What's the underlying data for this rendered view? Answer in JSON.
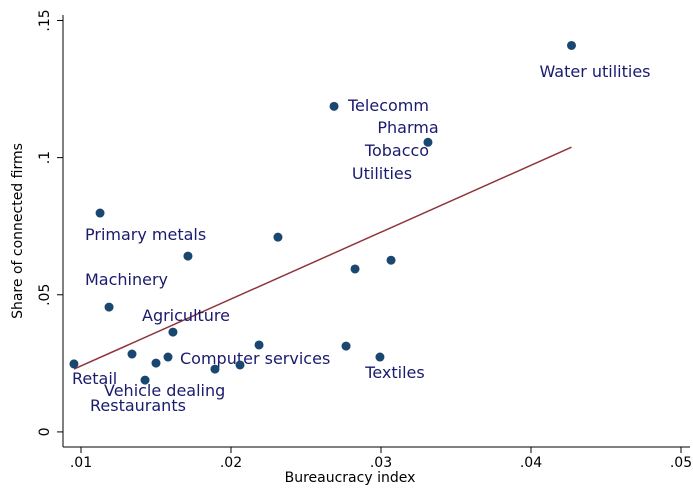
{
  "chart_data": {
    "type": "scatter",
    "xlabel": "Bureaucracy index",
    "ylabel": "Share of connected firms",
    "xlim": [
      0.0088,
      0.0506
    ],
    "ylim": [
      -0.0055,
      0.152
    ],
    "xticks": [
      {
        "value": 0.01,
        "label": ".01"
      },
      {
        "value": 0.02,
        "label": ".02"
      },
      {
        "value": 0.03,
        "label": ".03"
      },
      {
        "value": 0.04,
        "label": ".04"
      },
      {
        "value": 0.05,
        "label": ".05"
      }
    ],
    "yticks": [
      0,
      {
        "value": 0.05,
        "label": ".05"
      },
      {
        "value": 0.1,
        "label": ".1"
      },
      {
        "value": 0.15,
        "label": ".15"
      }
    ],
    "color": "#1a476f",
    "label_color": "#1a1a6e",
    "x": [
      0.0427,
      0.02687,
      0.03313,
      0.01127,
      0.02313,
      0.01713,
      0.02827,
      0.03067,
      0.01187,
      0.01613,
      0.02187,
      0.02767,
      0.02993,
      0.0134,
      0.0158,
      0.015,
      0.00953,
      0.01427,
      0.01893,
      0.0206
    ],
    "values": [
      0.1409,
      0.1187,
      0.1056,
      0.0798,
      0.071,
      0.0641,
      0.0594,
      0.0626,
      0.0455,
      0.0364,
      0.0317,
      0.0313,
      0.0273,
      0.0284,
      0.0273,
      0.0251,
      0.0248,
      0.0189,
      0.0229,
      0.0244
    ],
    "labels": [
      "Water utilities",
      "Telecomm",
      "Pharma",
      null,
      null,
      null,
      "Utilities",
      "Tobacco",
      "Machinery",
      "Agriculture",
      "Computer services",
      null,
      "Textiles",
      null,
      null,
      null,
      "Retail",
      "Vehicle dealing",
      "Restaurants",
      null
    ],
    "fit": {
      "color": "#90353b",
      "x": [
        0.00953,
        0.0427
      ],
      "y": [
        0.0229,
        0.1038
      ]
    },
    "primary_label": "Primary metals"
  }
}
